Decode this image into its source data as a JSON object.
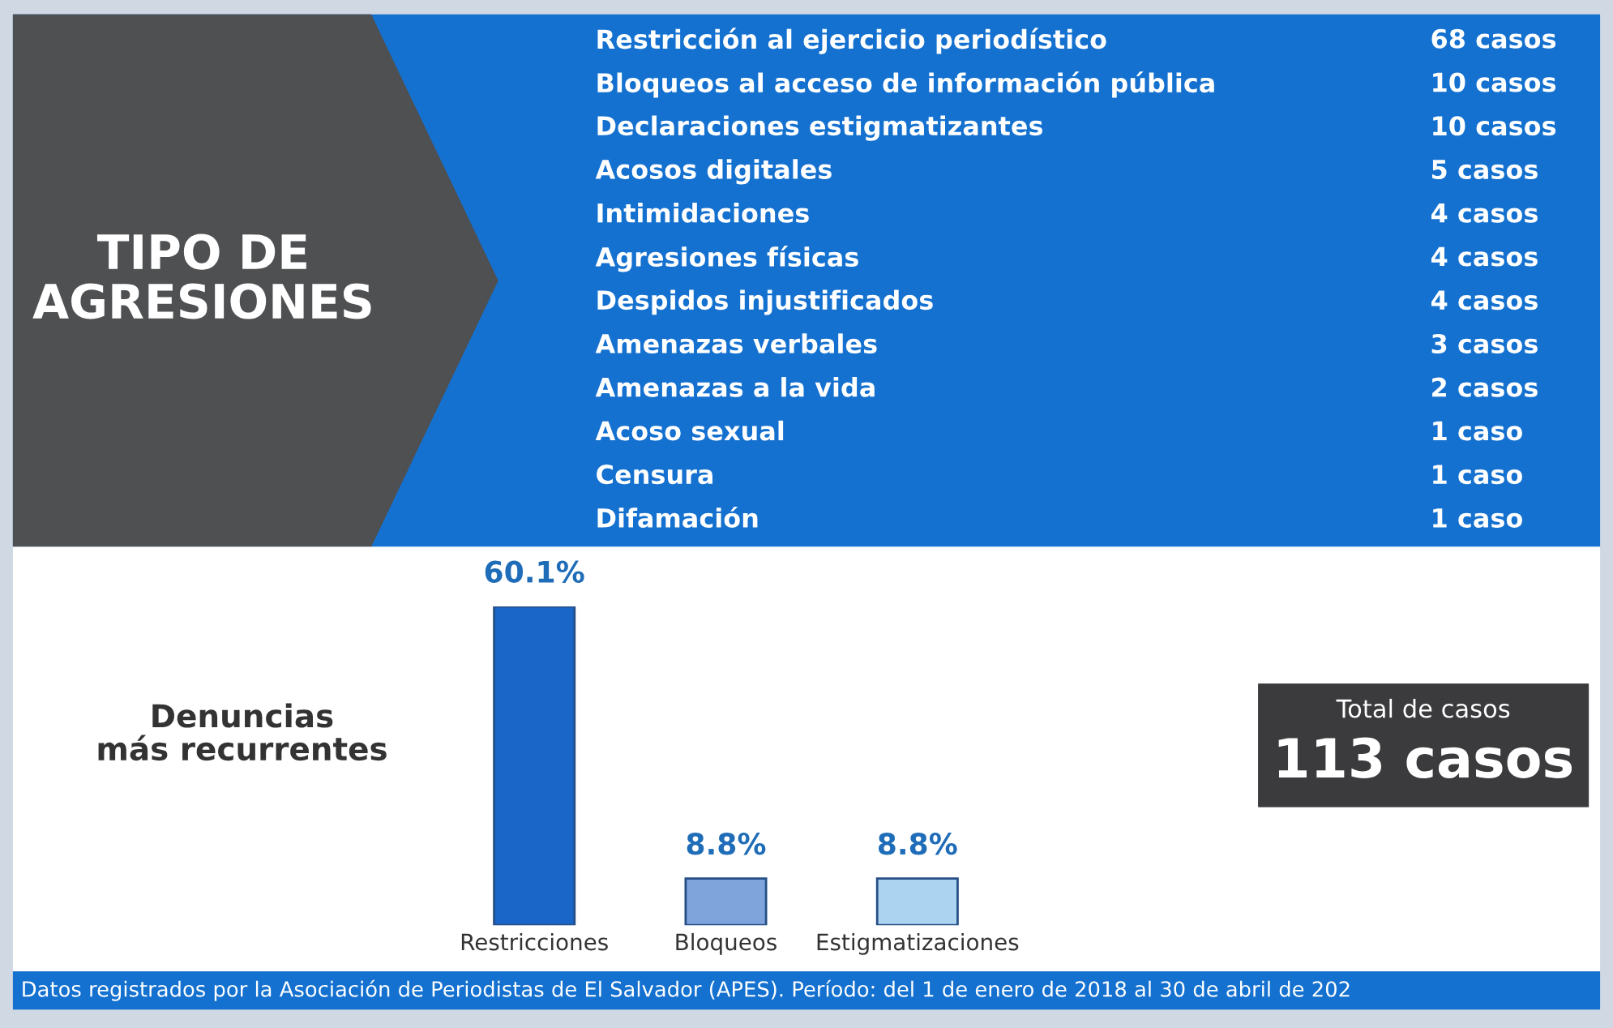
{
  "chart_data": [
    {
      "type": "other",
      "title": "TIPO DE AGRESIONES",
      "categories": [
        "Restricción al ejercicio periodístico",
        "Bloqueos al acceso de información pública",
        "Declaraciones estigmatizantes",
        "Acosos digitales",
        "Intimidaciones",
        "Agresiones físicas",
        "Despidos injustificados",
        "Amenazas verbales",
        "Amenazas a la vida",
        "Acoso sexual",
        "Censura",
        "Difamación"
      ],
      "values": [
        68,
        10,
        10,
        5,
        4,
        4,
        4,
        3,
        2,
        1,
        1,
        1
      ],
      "value_labels": [
        "68 casos",
        "10 casos",
        "10 casos",
        "5 casos",
        "4 casos",
        "4 casos",
        "4 casos",
        "3 casos",
        "2 casos",
        "1 caso",
        "1 caso",
        "1 caso"
      ]
    },
    {
      "type": "bar",
      "title": "Denuncias\nmás recurrentes",
      "categories": [
        "Restricciones",
        "Bloqueos",
        "Estigmatizaciones"
      ],
      "values": [
        60.1,
        8.8,
        8.8
      ],
      "colors": [
        "#1a66c8",
        "#7fa3db",
        "#acd3f0"
      ],
      "value_labels": [
        "60.1%",
        "8.8%",
        "8.8%"
      ],
      "annotations": [
        "Datos registrados por la Asociación de Periodistas de El Salvador (APES). Período: del 1 de enero de 2018 al 30 de abril de 202"
      ]
    },
    {
      "type": "other",
      "annotations": [
        "Total de casos",
        "113 casos"
      ]
    }
  ]
}
